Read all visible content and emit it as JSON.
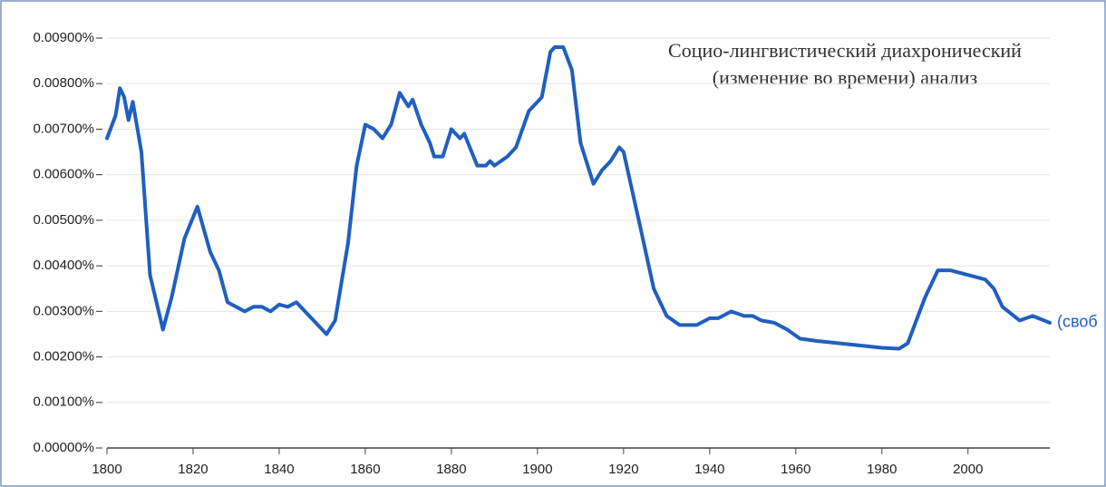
{
  "chart_data": {
    "type": "line",
    "annotation": [
      "Социо-лингвистический диахронический",
      "(изменение во времени) анализ"
    ],
    "x": [
      1800,
      1802,
      1803,
      1804,
      1805,
      1806,
      1808,
      1810,
      1813,
      1815,
      1818,
      1821,
      1824,
      1826,
      1828,
      1830,
      1832,
      1834,
      1836,
      1838,
      1840,
      1842,
      1844,
      1846,
      1848,
      1851,
      1853,
      1856,
      1858,
      1860,
      1862,
      1864,
      1866,
      1868,
      1870,
      1871,
      1873,
      1875,
      1876,
      1878,
      1880,
      1882,
      1883,
      1886,
      1888,
      1889,
      1890,
      1893,
      1895,
      1898,
      1901,
      1903,
      1904,
      1906,
      1908,
      1910,
      1913,
      1915,
      1917,
      1919,
      1920,
      1924,
      1927,
      1930,
      1933,
      1937,
      1940,
      1942,
      1945,
      1948,
      1950,
      1952,
      1955,
      1958,
      1961,
      1965,
      1970,
      1975,
      1980,
      1984,
      1986,
      1990,
      1993,
      1996,
      2000,
      2004,
      2006,
      2008,
      2012,
      2015,
      2019
    ],
    "series": [
      {
        "name": "(своб",
        "color": "#1f5fbf",
        "values": [
          0.0068,
          0.0073,
          0.0079,
          0.0077,
          0.0072,
          0.0076,
          0.0065,
          0.0038,
          0.0026,
          0.0033,
          0.0046,
          0.0053,
          0.0043,
          0.0039,
          0.0032,
          0.0031,
          0.003,
          0.0031,
          0.0031,
          0.003,
          0.00315,
          0.0031,
          0.0032,
          0.003,
          0.0028,
          0.0025,
          0.0028,
          0.0045,
          0.0062,
          0.0071,
          0.007,
          0.0068,
          0.0071,
          0.0078,
          0.0075,
          0.00765,
          0.0071,
          0.0067,
          0.0064,
          0.0064,
          0.007,
          0.0068,
          0.0069,
          0.0062,
          0.0062,
          0.0063,
          0.0062,
          0.0064,
          0.0066,
          0.0074,
          0.0077,
          0.0087,
          0.0088,
          0.0088,
          0.0083,
          0.0067,
          0.0058,
          0.0061,
          0.0063,
          0.0066,
          0.0065,
          0.0048,
          0.0035,
          0.0029,
          0.0027,
          0.0027,
          0.00285,
          0.00285,
          0.003,
          0.0029,
          0.0029,
          0.0028,
          0.00275,
          0.0026,
          0.0024,
          0.00235,
          0.0023,
          0.00225,
          0.0022,
          0.00218,
          0.0023,
          0.0033,
          0.0039,
          0.0039,
          0.0038,
          0.0037,
          0.0035,
          0.0031,
          0.0028,
          0.0029,
          0.00275
        ]
      }
    ],
    "xlim": [
      1800,
      2019
    ],
    "xticks": [
      1800,
      1820,
      1840,
      1860,
      1880,
      1900,
      1920,
      1940,
      1960,
      1980,
      2000
    ],
    "ylim": [
      0,
      0.009
    ],
    "yticks": [
      {
        "value": 0,
        "label": "0.00000%"
      },
      {
        "value": 0.001,
        "label": "0.00100%"
      },
      {
        "value": 0.002,
        "label": "0.00200%"
      },
      {
        "value": 0.003,
        "label": "0.00300%"
      },
      {
        "value": 0.004,
        "label": "0.00400%"
      },
      {
        "value": 0.005,
        "label": "0.00500%"
      },
      {
        "value": 0.006,
        "label": "0.00600%"
      },
      {
        "value": 0.007,
        "label": "0.00700%"
      },
      {
        "value": 0.008,
        "label": "0.00800%"
      },
      {
        "value": 0.009,
        "label": "0.00900%"
      }
    ],
    "grid": true
  }
}
